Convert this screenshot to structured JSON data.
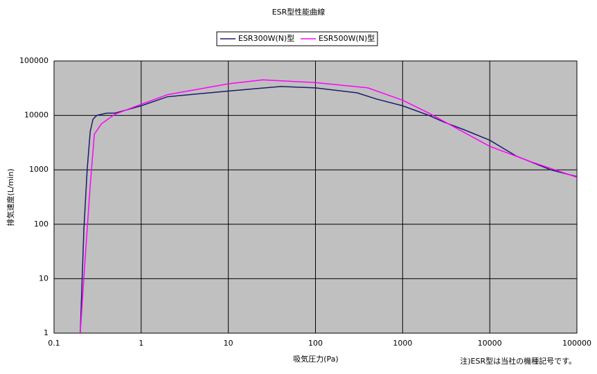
{
  "chart_data": {
    "type": "line",
    "title": "ESR型性能曲線",
    "x_label": "吸気圧力(Pa)",
    "y_label": "排気速度(L/min)",
    "note": "注)ESR型は当社の機種記号です。",
    "xscale": "log",
    "yscale": "log",
    "grid": true,
    "legend": "top",
    "background": "#c0c0c0",
    "xlim": [
      0.1,
      100000
    ],
    "xticks": [
      0.1,
      1,
      10,
      100,
      1000,
      10000,
      100000
    ],
    "ylim": [
      1,
      100000
    ],
    "yticks": [
      1,
      10,
      100,
      1000,
      10000,
      100000
    ],
    "series": [
      {
        "name": "ESR300W(N)型",
        "color": "#1a1a6e",
        "x": [
          0.2,
          0.22,
          0.24,
          0.26,
          0.28,
          0.31,
          0.4,
          0.5,
          1,
          2,
          10,
          40,
          100,
          300,
          500,
          1000,
          2000,
          3000,
          5000,
          10000,
          20000,
          50000,
          100000
        ],
        "values": [
          1,
          80,
          1000,
          5000,
          8500,
          10000,
          11000,
          11000,
          15000,
          22000,
          28000,
          34000,
          32000,
          26000,
          20000,
          15000,
          10000,
          7500,
          5500,
          3500,
          1800,
          1000,
          750
        ]
      },
      {
        "name": "ESR500W(N)型",
        "color": "#ff00ff",
        "x": [
          0.2,
          0.23,
          0.26,
          0.29,
          0.35,
          0.5,
          1,
          2,
          10,
          25,
          100,
          400,
          1000,
          2000,
          4000,
          10000,
          30000,
          100000
        ],
        "values": [
          1,
          30,
          500,
          4500,
          7000,
          10500,
          16000,
          24000,
          38000,
          45000,
          40000,
          32000,
          19000,
          11000,
          6000,
          2700,
          1400,
          730
        ]
      }
    ]
  }
}
